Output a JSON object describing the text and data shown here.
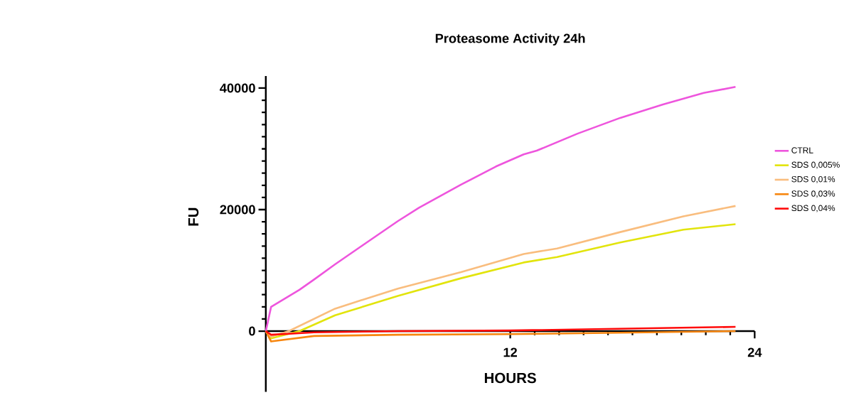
{
  "chart_data": {
    "type": "line",
    "title": "Proteasome Activity 24h",
    "xlabel": "HOURS",
    "ylabel": "FU",
    "xlim": [
      0,
      24
    ],
    "ylim": [
      -10000,
      42000
    ],
    "xticks": [
      12,
      24
    ],
    "yticks": [
      0,
      20000,
      40000
    ],
    "legend": "right",
    "series": [
      {
        "name": "CTRL",
        "color": "#ee55dd",
        "x": [
          0,
          0.26,
          1.65,
          2.37,
          3.4,
          4.74,
          6.48,
          7.52,
          9.58,
          11.3,
          12.66,
          13.3,
          15.3,
          17.4,
          19.5,
          21.5,
          23.06
        ],
        "values": [
          0,
          4000,
          6800,
          8500,
          11000,
          14100,
          18100,
          20300,
          24100,
          27100,
          29100,
          29700,
          32500,
          35100,
          37300,
          39200,
          40200
        ]
      },
      {
        "name": "SDS 0,005%",
        "color": "#e2e40c",
        "x": [
          0,
          0.26,
          1.65,
          3.4,
          6.48,
          9.58,
          12.66,
          14.3,
          17.4,
          20.5,
          23.06
        ],
        "values": [
          0,
          -1200,
          0,
          2600,
          5800,
          8700,
          11300,
          12200,
          14600,
          16700,
          17600
        ]
      },
      {
        "name": "SDS 0,01%",
        "color": "#f9bd7e",
        "x": [
          0,
          0.26,
          1.13,
          3.4,
          6.48,
          9.58,
          12.66,
          14.3,
          17.4,
          20.5,
          23.06
        ],
        "values": [
          0,
          -900,
          0,
          3700,
          7000,
          9700,
          12700,
          13600,
          16300,
          18900,
          20600
        ]
      },
      {
        "name": "SDS 0,03%",
        "color": "#f7860f",
        "x": [
          0,
          0.26,
          2.37,
          6.48,
          12,
          23.06
        ],
        "values": [
          0,
          -1700,
          -800,
          -600,
          -500,
          0
        ]
      },
      {
        "name": "SDS 0,04%",
        "color": "#ff0a0a",
        "x": [
          0,
          0.26,
          2.37,
          6.48,
          12,
          23.06
        ],
        "values": [
          0,
          -600,
          -200,
          0,
          100,
          700
        ]
      }
    ]
  }
}
